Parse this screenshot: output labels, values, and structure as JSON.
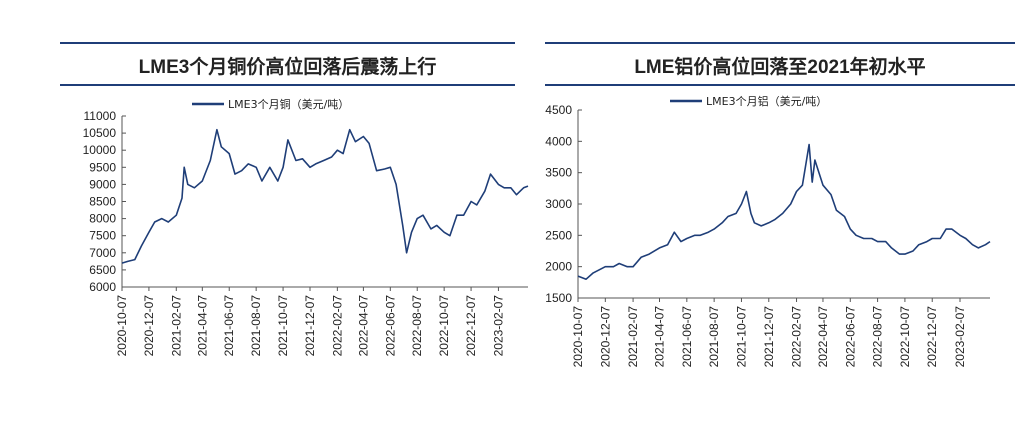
{
  "colors": {
    "series": "#1f3e78",
    "rule": "#1f3e78",
    "axis": "#555555"
  },
  "chart_data": [
    {
      "type": "line",
      "title": "LME3个月铜价高位回落后震荡上行",
      "legend": "LME3个月铜（美元/吨）",
      "legend_position": "top-center",
      "grid": false,
      "ylim": [
        6000,
        11000
      ],
      "yticks": [
        6000,
        6500,
        7000,
        7500,
        8000,
        8500,
        9000,
        9500,
        10000,
        10500,
        11000
      ],
      "xlim": [
        "2020-10-07",
        "2023-04-15"
      ],
      "xticks": [
        "2020-10-07",
        "2020-12-07",
        "2021-02-07",
        "2021-04-07",
        "2021-06-07",
        "2021-08-07",
        "2021-10-07",
        "2021-12-07",
        "2022-02-07",
        "2022-04-07",
        "2022-06-07",
        "2022-08-07",
        "2022-10-07",
        "2022-12-07",
        "2023-02-07"
      ],
      "series": [
        {
          "name": "LME3个月铜（美元/吨）",
          "points": [
            [
              "2020-10-07",
              6700
            ],
            [
              "2020-10-20",
              6750
            ],
            [
              "2020-11-05",
              6800
            ],
            [
              "2020-11-20",
              7200
            ],
            [
              "2020-12-07",
              7600
            ],
            [
              "2020-12-20",
              7900
            ],
            [
              "2021-01-05",
              8000
            ],
            [
              "2021-01-20",
              7900
            ],
            [
              "2021-02-07",
              8100
            ],
            [
              "2021-02-20",
              8600
            ],
            [
              "2021-02-25",
              9500
            ],
            [
              "2021-03-05",
              9000
            ],
            [
              "2021-03-20",
              8900
            ],
            [
              "2021-04-07",
              9100
            ],
            [
              "2021-04-25",
              9700
            ],
            [
              "2021-05-10",
              10600
            ],
            [
              "2021-05-20",
              10100
            ],
            [
              "2021-06-07",
              9900
            ],
            [
              "2021-06-20",
              9300
            ],
            [
              "2021-07-05",
              9400
            ],
            [
              "2021-07-20",
              9600
            ],
            [
              "2021-08-07",
              9500
            ],
            [
              "2021-08-20",
              9100
            ],
            [
              "2021-09-07",
              9500
            ],
            [
              "2021-09-25",
              9100
            ],
            [
              "2021-10-07",
              9500
            ],
            [
              "2021-10-18",
              10300
            ],
            [
              "2021-11-05",
              9700
            ],
            [
              "2021-11-20",
              9750
            ],
            [
              "2021-12-07",
              9500
            ],
            [
              "2021-12-20",
              9600
            ],
            [
              "2022-01-07",
              9700
            ],
            [
              "2022-01-25",
              9800
            ],
            [
              "2022-02-07",
              10000
            ],
            [
              "2022-02-20",
              9900
            ],
            [
              "2022-03-07",
              10600
            ],
            [
              "2022-03-20",
              10250
            ],
            [
              "2022-04-07",
              10400
            ],
            [
              "2022-04-20",
              10200
            ],
            [
              "2022-05-07",
              9400
            ],
            [
              "2022-05-25",
              9450
            ],
            [
              "2022-06-07",
              9500
            ],
            [
              "2022-06-20",
              9000
            ],
            [
              "2022-07-05",
              7800
            ],
            [
              "2022-07-14",
              7000
            ],
            [
              "2022-07-25",
              7600
            ],
            [
              "2022-08-07",
              8000
            ],
            [
              "2022-08-20",
              8100
            ],
            [
              "2022-09-07",
              7700
            ],
            [
              "2022-09-20",
              7800
            ],
            [
              "2022-10-07",
              7600
            ],
            [
              "2022-10-20",
              7500
            ],
            [
              "2022-11-05",
              8100
            ],
            [
              "2022-11-20",
              8100
            ],
            [
              "2022-12-07",
              8500
            ],
            [
              "2022-12-20",
              8400
            ],
            [
              "2023-01-07",
              8800
            ],
            [
              "2023-01-20",
              9300
            ],
            [
              "2023-02-07",
              9000
            ],
            [
              "2023-02-20",
              8900
            ],
            [
              "2023-03-07",
              8900
            ],
            [
              "2023-03-20",
              8700
            ],
            [
              "2023-04-05",
              8900
            ],
            [
              "2023-04-15",
              8950
            ]
          ]
        }
      ]
    },
    {
      "type": "line",
      "title": "LME铝价高位回落至2021年初水平",
      "legend": "LME3个月铝（美元/吨）",
      "legend_position": "top-center",
      "grid": false,
      "ylim": [
        1500,
        4500
      ],
      "yticks": [
        1500,
        2000,
        2500,
        3000,
        3500,
        4000,
        4500
      ],
      "xlim": [
        "2020-10-07",
        "2023-04-15"
      ],
      "xticks": [
        "2020-10-07",
        "2020-12-07",
        "2021-02-07",
        "2021-04-07",
        "2021-06-07",
        "2021-08-07",
        "2021-10-07",
        "2021-12-07",
        "2022-02-07",
        "2022-04-07",
        "2022-06-07",
        "2022-08-07",
        "2022-10-07",
        "2022-12-07",
        "2023-02-07"
      ],
      "series": [
        {
          "name": "LME3个月铝（美元/吨）",
          "points": [
            [
              "2020-10-07",
              1850
            ],
            [
              "2020-10-25",
              1800
            ],
            [
              "2020-11-10",
              1900
            ],
            [
              "2020-12-07",
              2000
            ],
            [
              "2020-12-25",
              2000
            ],
            [
              "2021-01-07",
              2050
            ],
            [
              "2021-01-25",
              2000
            ],
            [
              "2021-02-07",
              2000
            ],
            [
              "2021-02-25",
              2150
            ],
            [
              "2021-03-15",
              2200
            ],
            [
              "2021-04-07",
              2300
            ],
            [
              "2021-04-25",
              2350
            ],
            [
              "2021-05-10",
              2550
            ],
            [
              "2021-05-25",
              2400
            ],
            [
              "2021-06-07",
              2450
            ],
            [
              "2021-06-25",
              2500
            ],
            [
              "2021-07-07",
              2500
            ],
            [
              "2021-07-25",
              2550
            ],
            [
              "2021-08-07",
              2600
            ],
            [
              "2021-08-25",
              2700
            ],
            [
              "2021-09-07",
              2800
            ],
            [
              "2021-09-25",
              2850
            ],
            [
              "2021-10-07",
              3000
            ],
            [
              "2021-10-18",
              3200
            ],
            [
              "2021-10-28",
              2850
            ],
            [
              "2021-11-05",
              2700
            ],
            [
              "2021-11-20",
              2650
            ],
            [
              "2021-12-07",
              2700
            ],
            [
              "2021-12-20",
              2750
            ],
            [
              "2022-01-07",
              2850
            ],
            [
              "2022-01-25",
              3000
            ],
            [
              "2022-02-07",
              3200
            ],
            [
              "2022-02-20",
              3300
            ],
            [
              "2022-03-07",
              3950
            ],
            [
              "2022-03-14",
              3350
            ],
            [
              "2022-03-20",
              3700
            ],
            [
              "2022-04-07",
              3300
            ],
            [
              "2022-04-25",
              3150
            ],
            [
              "2022-05-07",
              2900
            ],
            [
              "2022-05-25",
              2800
            ],
            [
              "2022-06-07",
              2600
            ],
            [
              "2022-06-20",
              2500
            ],
            [
              "2022-07-07",
              2450
            ],
            [
              "2022-07-25",
              2450
            ],
            [
              "2022-08-07",
              2400
            ],
            [
              "2022-08-25",
              2400
            ],
            [
              "2022-09-07",
              2300
            ],
            [
              "2022-09-25",
              2200
            ],
            [
              "2022-10-07",
              2200
            ],
            [
              "2022-10-25",
              2250
            ],
            [
              "2022-11-07",
              2350
            ],
            [
              "2022-11-25",
              2400
            ],
            [
              "2022-12-07",
              2450
            ],
            [
              "2022-12-25",
              2450
            ],
            [
              "2023-01-07",
              2600
            ],
            [
              "2023-01-20",
              2600
            ],
            [
              "2023-02-07",
              2500
            ],
            [
              "2023-02-20",
              2450
            ],
            [
              "2023-03-07",
              2350
            ],
            [
              "2023-03-20",
              2300
            ],
            [
              "2023-04-05",
              2350
            ],
            [
              "2023-04-15",
              2400
            ]
          ]
        }
      ]
    }
  ]
}
